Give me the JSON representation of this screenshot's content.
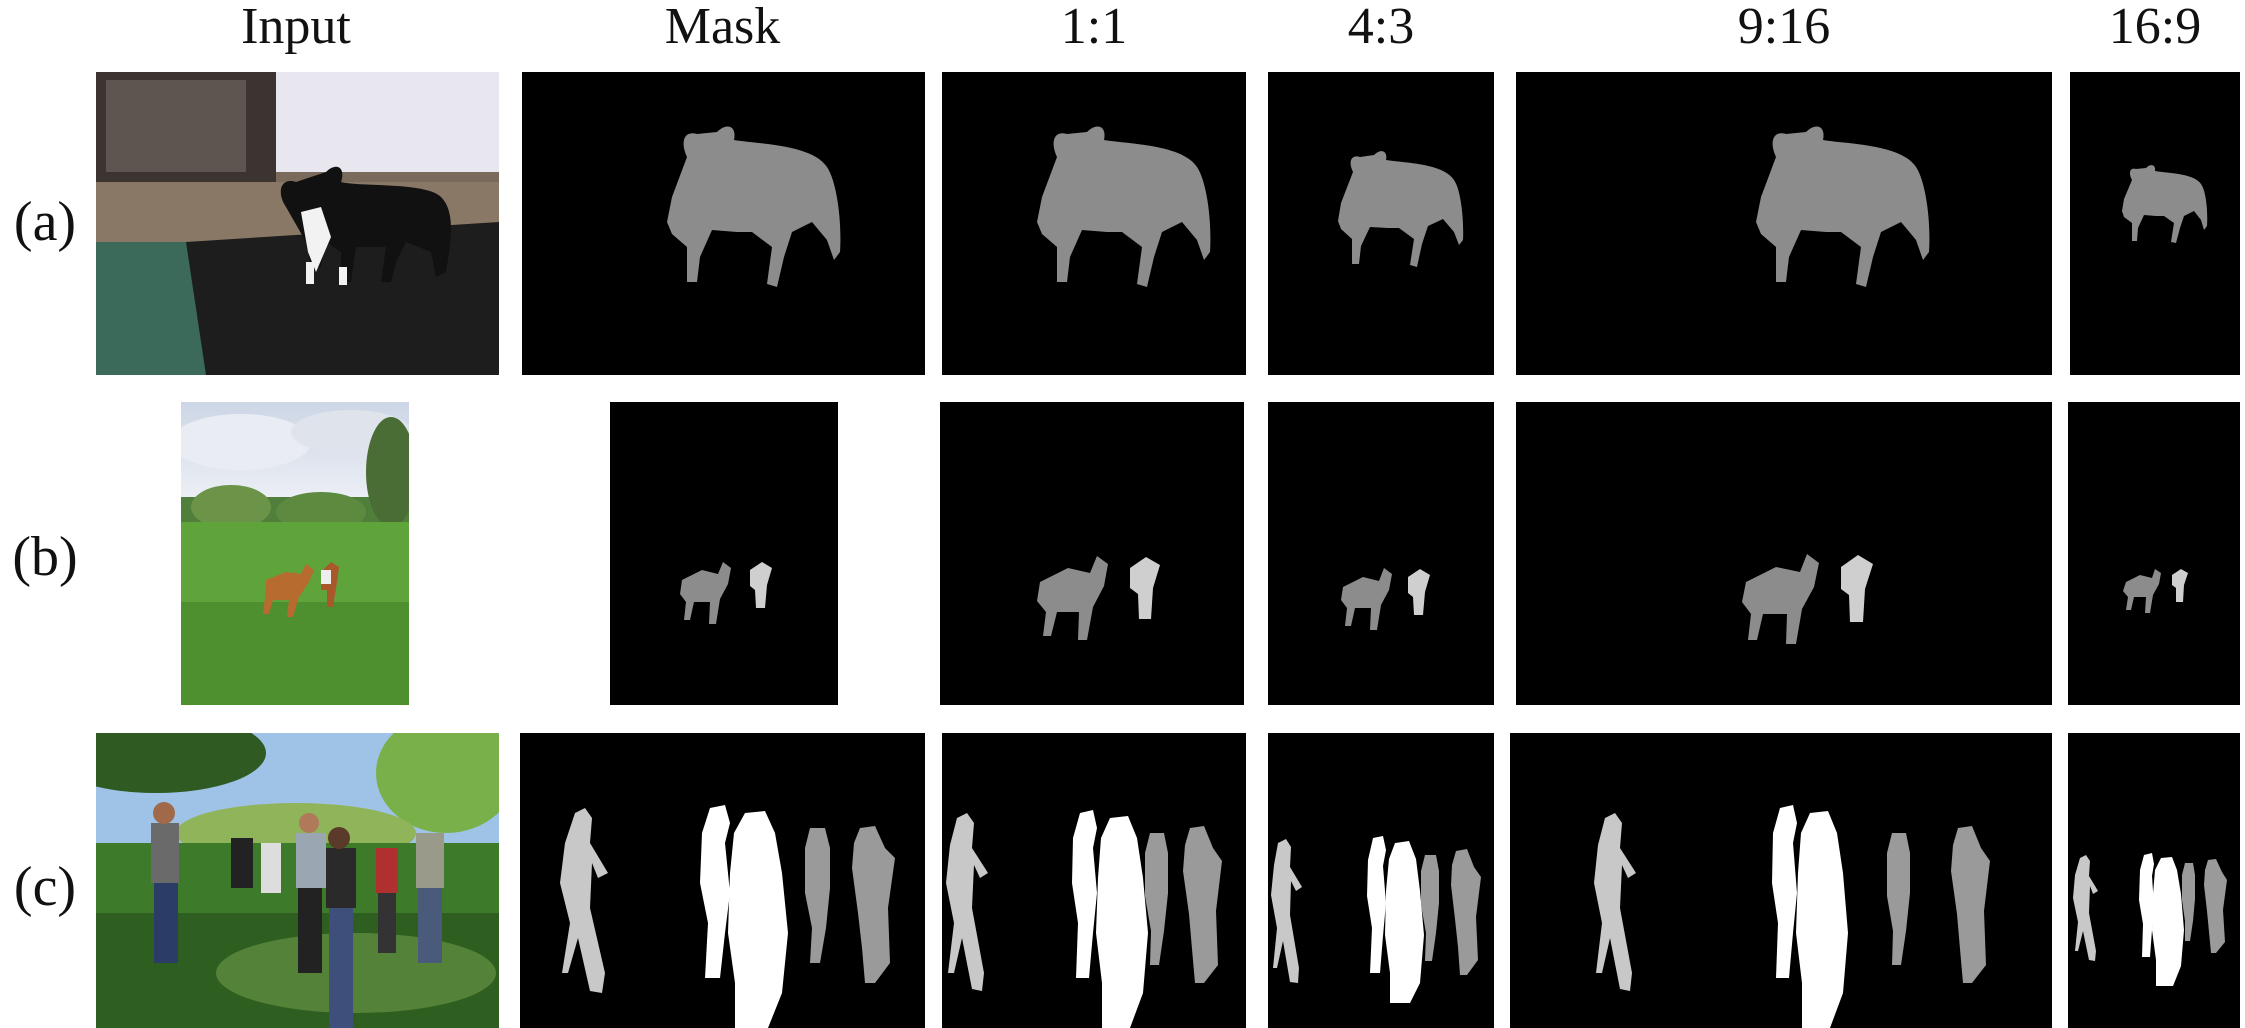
{
  "columns": {
    "input": "Input",
    "mask": "Mask",
    "r1": "1:1",
    "r2": "4:3",
    "r3": "9:16",
    "r4": "16:9"
  },
  "rows": {
    "a": "(a)",
    "b": "(b)",
    "c": "(c)"
  },
  "colors": {
    "mask_background": "#000000",
    "dog_mask": "#8c8c8c",
    "person_light": "#c8c8c8",
    "person_white": "#ffffff",
    "person_gray": "#9a9a9a"
  }
}
